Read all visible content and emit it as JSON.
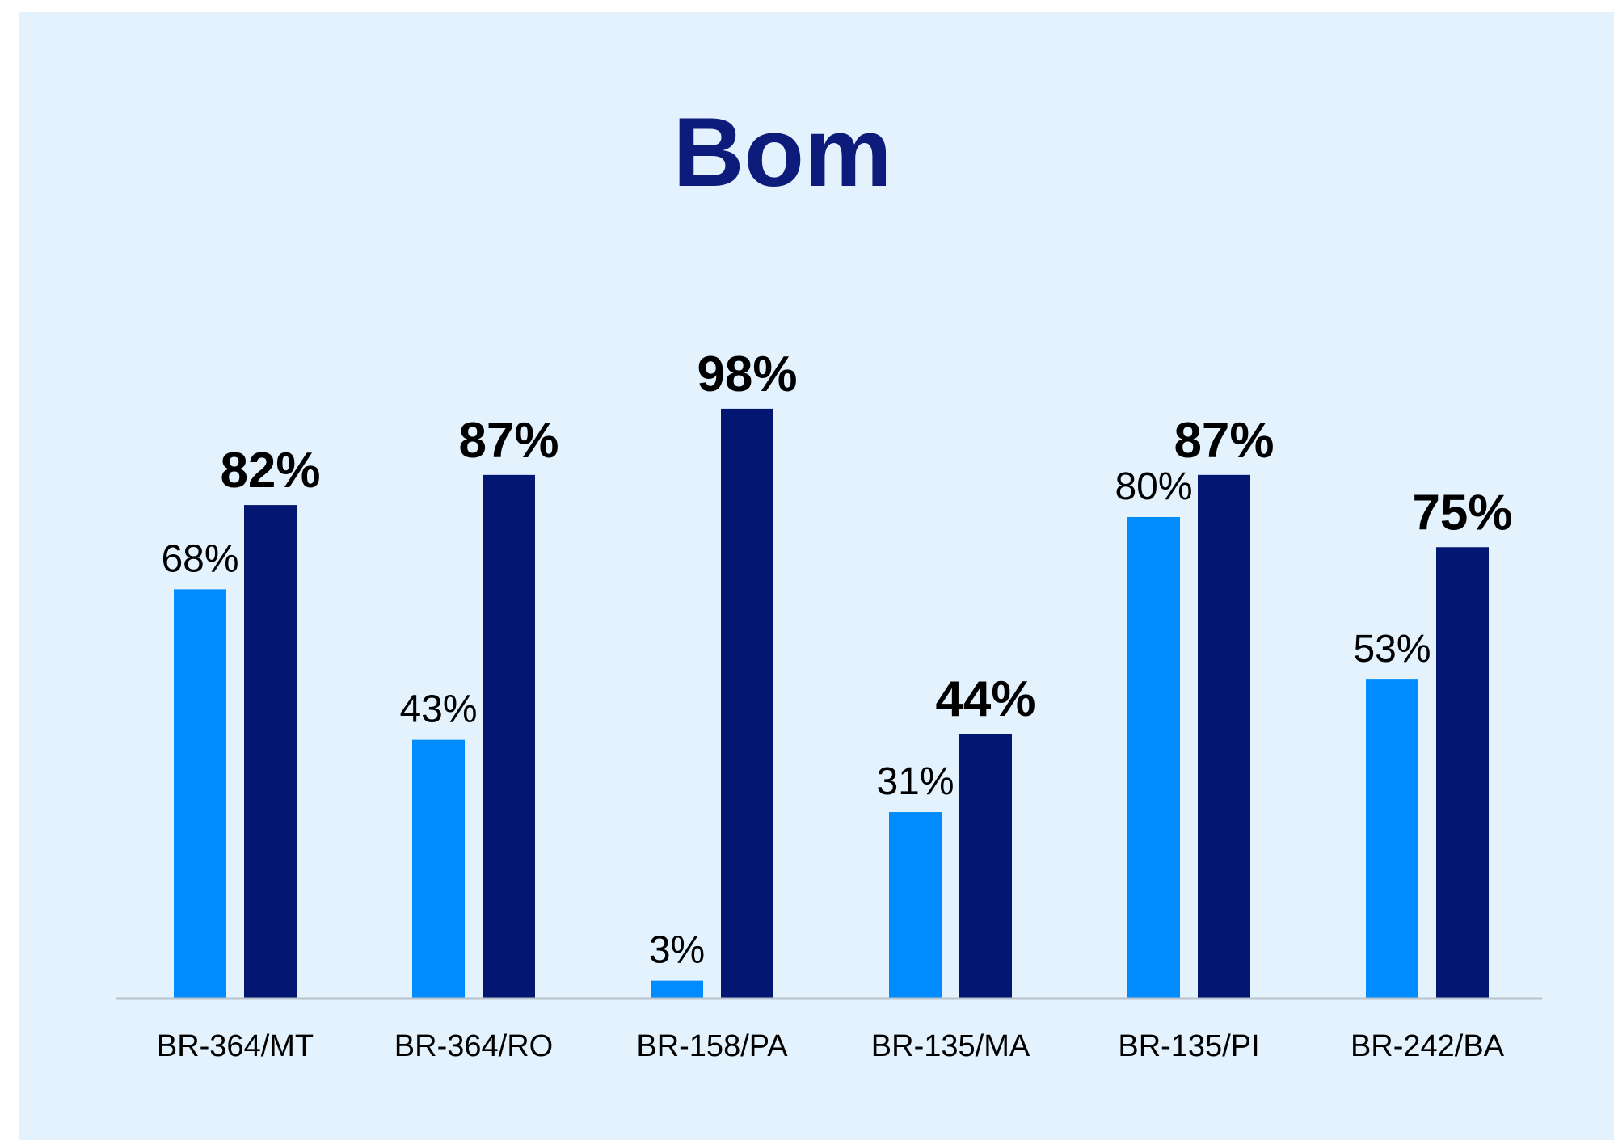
{
  "chart_data": {
    "type": "bar",
    "title": "Bom",
    "categories": [
      "BR-364/MT",
      "BR-364/RO",
      "BR-158/PA",
      "BR-135/MA",
      "BR-135/PI",
      "BR-242/BA"
    ],
    "series": [
      {
        "values": [
          68,
          43,
          3,
          31,
          80,
          53
        ],
        "labels": [
          "68%",
          "43%",
          "3%",
          "31%",
          "80%",
          "53%"
        ]
      },
      {
        "values": [
          82,
          87,
          98,
          44,
          87,
          75
        ],
        "labels": [
          "82%",
          "87%",
          "98%",
          "44%",
          "87%",
          "75%"
        ]
      }
    ],
    "ylim": [
      0,
      100
    ],
    "grid": false,
    "legend": "none",
    "colors": {
      "background": "#e3f2fd",
      "title": "#0d1b7a",
      "series_1": "#008cff",
      "series_2": "#021672",
      "baseline": "#b8c2cc",
      "text": "#000000"
    }
  }
}
